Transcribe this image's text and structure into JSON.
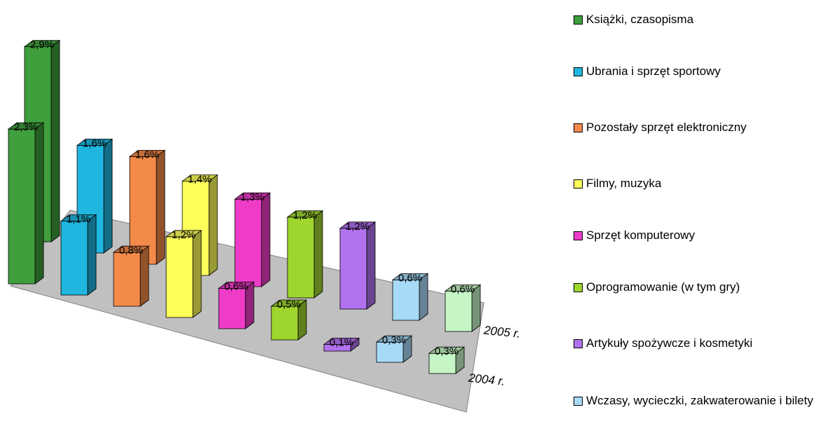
{
  "chart_data": {
    "type": "bar3d",
    "categories": [
      "Książki, czasopisma",
      "Ubrania i sprzęt sportowy",
      "Pozostały sprzęt elektroniczny",
      "Filmy, muzyka",
      "Sprzęt komputerowy",
      "Oprogramowanie (w tym gry)",
      "Artykuły spożywcze i kosmetyki",
      "Wczasy, wycieczki, zakwaterowanie i bilety",
      null
    ],
    "colors": [
      "#3f9f3c",
      "#1fb6e0",
      "#f48a4a",
      "#ffff5a",
      "#ee3cc8",
      "#9fd62e",
      "#b272f0",
      "#a6daf6",
      "#c6f6c6"
    ],
    "series": [
      {
        "name": "2005 r.",
        "values": [
          2.9,
          1.6,
          1.6,
          1.4,
          1.3,
          1.2,
          1.2,
          0.6,
          0.6
        ],
        "value_labels": [
          "2,9%",
          "1,6%",
          "1,6%",
          "1,4%",
          "1,3%",
          "1,2%",
          "1,2%",
          "0,6%",
          "0,6%"
        ]
      },
      {
        "name": "2004 r.",
        "values": [
          2.3,
          1.1,
          0.8,
          1.2,
          0.6,
          0.5,
          0.1,
          0.3,
          0.3
        ],
        "value_labels": [
          "2,3%",
          "1,1%",
          "0,8%",
          "1,2%",
          "0,6%",
          "0,5%",
          "0,1%",
          "0,3%",
          "0,3%"
        ]
      }
    ]
  }
}
